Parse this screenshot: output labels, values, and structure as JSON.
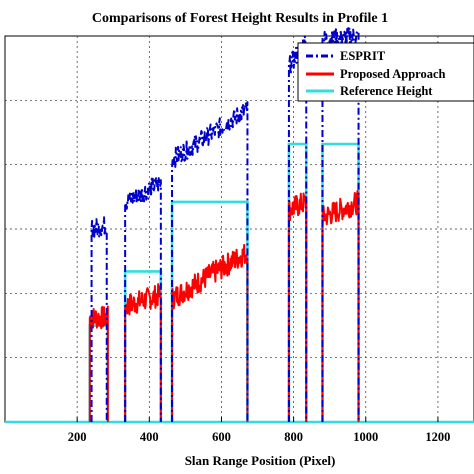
{
  "chart_data": {
    "type": "line",
    "title": "Comparisons of Forest Height Results in Profile 1",
    "xlabel": "Slan Range Position (Pixel)",
    "ylabel": "",
    "xlim": [
      0,
      1300
    ],
    "ylim": [
      0,
      1
    ],
    "xticks": [
      "200",
      "400",
      "600",
      "800",
      "1000",
      "1200"
    ],
    "xtick_values": [
      200,
      400,
      600,
      800,
      1000,
      1200
    ],
    "grid": true,
    "legend_position": "top-right",
    "series": [
      {
        "name": "ESPRIT",
        "color": "#0000cc",
        "style": "dashdot",
        "segments": [
          {
            "x_start": 240,
            "x_end": 282,
            "y_start": 0.5,
            "y_end": 0.51
          },
          {
            "x_start": 333,
            "x_end": 432,
            "y_start": 0.57,
            "y_end": 0.62
          },
          {
            "x_start": 463,
            "x_end": 672,
            "y_start": 0.68,
            "y_end": 0.81
          },
          {
            "x_start": 787,
            "x_end": 835,
            "y_start": 0.92,
            "y_end": 0.99
          },
          {
            "x_start": 880,
            "x_end": 980,
            "y_start": 0.99,
            "y_end": 1.0
          }
        ]
      },
      {
        "name": "Proposed Approach",
        "color": "#ff0000",
        "style": "solid",
        "segments": [
          {
            "x_start": 235,
            "x_end": 285,
            "y_start": 0.27,
            "y_end": 0.27
          },
          {
            "x_start": 333,
            "x_end": 432,
            "y_start": 0.3,
            "y_end": 0.33
          },
          {
            "x_start": 463,
            "x_end": 672,
            "y_start": 0.32,
            "y_end": 0.44
          },
          {
            "x_start": 787,
            "x_end": 835,
            "y_start": 0.55,
            "y_end": 0.57
          },
          {
            "x_start": 880,
            "x_end": 980,
            "y_start": 0.53,
            "y_end": 0.57
          }
        ]
      },
      {
        "name": "Reference Height",
        "color": "#33dddd",
        "style": "solid",
        "segments": [
          {
            "x_start": 235,
            "x_end": 285,
            "y": 0.25
          },
          {
            "x_start": 333,
            "x_end": 432,
            "y": 0.39
          },
          {
            "x_start": 463,
            "x_end": 672,
            "y": 0.57
          },
          {
            "x_start": 787,
            "x_end": 835,
            "y": 0.72
          },
          {
            "x_start": 880,
            "x_end": 980,
            "y": 0.72
          }
        ]
      }
    ]
  }
}
